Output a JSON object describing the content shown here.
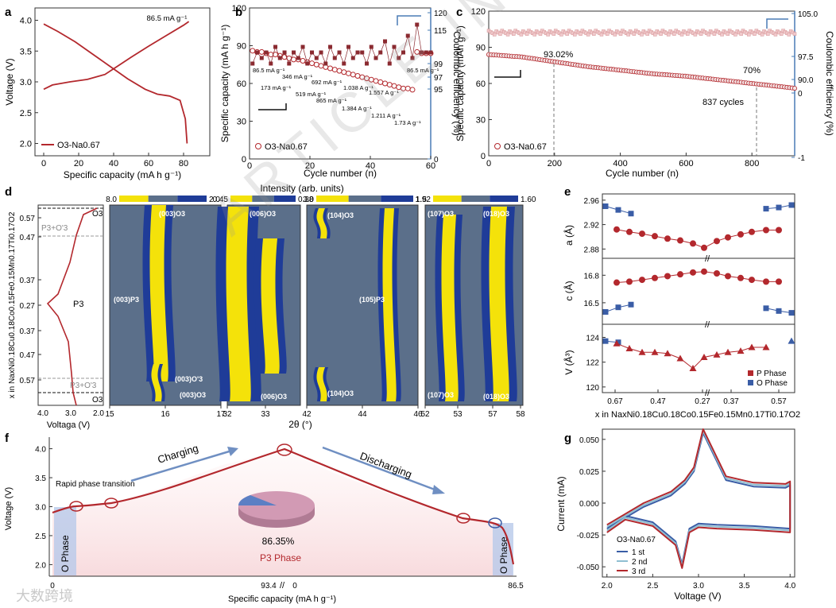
{
  "watermark": "ARTICLE IN PRESS",
  "corner_logo": "大数跨境",
  "panel_letters": {
    "a": "a",
    "b": "b",
    "c": "c",
    "d": "d",
    "e": "e",
    "f": "f",
    "g": "g"
  },
  "chart_data": [
    {
      "id": "a",
      "type": "line",
      "xlabel": "Specific capacity (mA h g⁻¹)",
      "ylabel": "Voltage (V)",
      "xlim": [
        -5,
        95
      ],
      "ylim": [
        1.8,
        4.2
      ],
      "xticks": [
        "0",
        "20",
        "40",
        "60",
        "80"
      ],
      "yticks": [
        "2.0",
        "2.5",
        "3.0",
        "3.5",
        "4.0"
      ],
      "legend": "O3-Na0.67",
      "annotation": "86.5 mA g⁻¹",
      "series": [
        {
          "name": "charge",
          "x": [
            0,
            5,
            15,
            25,
            35,
            42,
            50,
            60,
            70,
            80,
            83
          ],
          "y": [
            2.88,
            2.95,
            3.0,
            3.04,
            3.12,
            3.25,
            3.4,
            3.58,
            3.75,
            3.92,
            3.98
          ]
        },
        {
          "name": "discharge",
          "x": [
            0,
            8,
            18,
            28,
            38,
            48,
            58,
            65,
            72,
            78,
            81,
            82
          ],
          "y": [
            3.94,
            3.82,
            3.65,
            3.45,
            3.25,
            3.05,
            2.88,
            2.8,
            2.77,
            2.7,
            2.4,
            2.0
          ]
        }
      ]
    },
    {
      "id": "b",
      "type": "scatter",
      "xlabel": "Cycle number (n)",
      "ylabel": "Specific capacity (mA h g⁻¹)",
      "ylabel_right": "Coulombic efficiency (%)",
      "xlim": [
        0,
        60
      ],
      "ylim": [
        0,
        120
      ],
      "xticks": [
        "0",
        "20",
        "40",
        "60"
      ],
      "yticks": [
        "0",
        "30",
        "60",
        "90",
        "120"
      ],
      "yticks_right": [
        "0",
        "95",
        "97",
        "99",
        "115",
        "120"
      ],
      "legend": "O3-Na0.67",
      "rate_labels": [
        "86.5 mA g⁻¹",
        "173 mA g⁻¹",
        "346 mA g⁻¹",
        "519 mA g⁻¹",
        "692 mA g⁻¹",
        "865 mA g⁻¹",
        "1.038 A g⁻¹",
        "1.384 A g⁻¹",
        "1.211 A g⁻¹",
        "1.557 A g⁻¹",
        "1.73 A g⁻¹",
        "86.5 mA g⁻¹"
      ],
      "capacity": [
        86,
        85,
        85,
        84,
        83,
        83,
        82,
        81,
        80,
        79,
        79,
        78,
        77,
        76,
        75,
        74,
        73,
        72,
        71,
        70,
        69,
        68,
        67,
        66,
        65,
        64,
        63,
        62,
        61,
        60,
        59,
        58,
        57,
        56,
        56,
        55,
        85,
        84,
        84,
        84
      ],
      "efficiency_pct": [
        97,
        99,
        98,
        99,
        97,
        100,
        98,
        99,
        97,
        99,
        98,
        100,
        97,
        99,
        98,
        99,
        97,
        100,
        98,
        99,
        97,
        100,
        98,
        99,
        99,
        97,
        100,
        98,
        99,
        101,
        97,
        100,
        98,
        99,
        102,
        98,
        104,
        99,
        99,
        99
      ]
    },
    {
      "id": "c",
      "type": "scatter",
      "xlabel": "Cycle number (n)",
      "ylabel": "Specific capacity (mAh g⁻¹)",
      "ylabel_right": "Coulombic efficiency (%)",
      "xlim": [
        0,
        930
      ],
      "ylim": [
        0,
        120
      ],
      "xticks": [
        "0",
        "200",
        "400",
        "600",
        "800"
      ],
      "yticks": [
        "0",
        "30",
        "60",
        "90",
        "120"
      ],
      "yticks_right": [
        "-1",
        "0",
        "90.0",
        "97.5",
        "105.0"
      ],
      "legend": "O3-Na0.67",
      "annotations": [
        "93.02%",
        "70%",
        "837 cycles"
      ],
      "capacity_x": [
        0,
        100,
        200,
        300,
        400,
        500,
        600,
        700,
        800,
        900,
        930
      ],
      "capacity": [
        84,
        82,
        78,
        74,
        71,
        68,
        66,
        63,
        60,
        57,
        56
      ],
      "efficiency_pct": 99.5
    },
    {
      "id": "d",
      "type": "heatmap",
      "xlabel": "2θ (°)",
      "ylabel": "x in NaxNi0.18Cu0.18Co0.15Fe0.15Mn0.17Ti0.17O2",
      "title": "Intensity (arb. units)",
      "voltage_axis": {
        "xlabel": "Voltaga (V)",
        "xticks": [
          "4.0",
          "3.0",
          "2.0"
        ],
        "yticks": [
          "0.57",
          "0.47",
          "0.37",
          "0.27",
          "0.37",
          "0.47",
          "0.57"
        ],
        "phase_labels": [
          "O3",
          "P3+O'3",
          "P3",
          "P3+O'3",
          "O3"
        ]
      },
      "colorbars": [
        [
          "8.0",
          "2.0"
        ],
        [
          "0.45",
          "0.38"
        ],
        [
          "3.0",
          "1.5"
        ],
        [
          "1.92",
          "1.60"
        ]
      ],
      "subpanels": [
        {
          "xticks": [
            "15",
            "16",
            "17"
          ],
          "peaks": [
            "(003)O3",
            "(003)P3",
            "(003)O'3",
            "(003)O3"
          ]
        },
        {
          "xticks": [
            "32",
            "33"
          ],
          "peaks": [
            "(006)O3",
            "(006)O3"
          ]
        },
        {
          "xticks": [
            "42",
            "44",
            "46"
          ],
          "peaks": [
            "(104)O3",
            "(105)P3",
            "(104)O3"
          ]
        },
        {
          "xticks": [
            "52",
            "53",
            "57",
            "58"
          ],
          "peaks": [
            "(107)O3",
            "(018)O3",
            "(107)O3",
            "(018)O3"
          ]
        }
      ]
    },
    {
      "id": "e",
      "type": "scatter",
      "xlabel": "x in NaxNi0.18Cu0.18Co0.15Fe0.15Mn0.17Ti0.17O2",
      "xticks": [
        "0.67",
        "0.47",
        "0.27",
        "0.37",
        "0.57"
      ],
      "legend": [
        "P Phase",
        "O Phase"
      ],
      "panels": [
        {
          "ylabel": "a (Å)",
          "yticks": [
            "2.88",
            "2.92",
            "2.96"
          ],
          "ylim": [
            2.87,
            2.965
          ],
          "O_left": [
            2.95,
            2.944,
            2.938
          ],
          "P": [
            2.912,
            2.908,
            2.905,
            2.901,
            2.897,
            2.894,
            2.889,
            2.882,
            2.893,
            2.899,
            2.904,
            2.908,
            2.911,
            2.911
          ],
          "O_right": [
            2.946,
            2.948,
            2.952
          ]
        },
        {
          "ylabel": "c (Å)",
          "yticks": [
            "16.5",
            "16.8"
          ],
          "ylim": [
            16.3,
            16.95
          ],
          "O_left": [
            16.4,
            16.45,
            16.48
          ],
          "P": [
            16.72,
            16.73,
            16.75,
            16.77,
            16.79,
            16.81,
            16.83,
            16.84,
            16.82,
            16.79,
            16.77,
            16.75,
            16.73,
            16.73
          ],
          "O_right": [
            16.44,
            16.41,
            16.39
          ]
        },
        {
          "ylabel": "V (Å³)",
          "yticks": [
            "120",
            "122",
            "124"
          ],
          "ylim": [
            119.8,
            124.8
          ],
          "O_left": [
            123.7,
            123.6
          ],
          "P": [
            123.5,
            123.1,
            122.8,
            122.8,
            122.7,
            122.3,
            121.5,
            122.4,
            122.6,
            122.8,
            122.9,
            123.2,
            123.2
          ],
          "O_right": [
            123.7
          ]
        }
      ]
    },
    {
      "id": "f",
      "type": "line",
      "xlabel": "Specific capacity (mA h g⁻¹)",
      "ylabel": "Voltage (V)",
      "ylim": [
        1.8,
        4.2
      ],
      "xticks": [
        "0",
        "93.4",
        "0",
        "86.5"
      ],
      "yticks": [
        "2.0",
        "2.5",
        "3.0",
        "3.5",
        "4.0"
      ],
      "labels": [
        "Rapid phase transition",
        "Charging",
        "Discharging",
        "O Phase",
        "O Phase",
        "86.35%",
        "P3 Phase"
      ],
      "pie": {
        "P3_pct": 86.35,
        "O_pct": 13.65
      },
      "charge_x": [
        0,
        10,
        20,
        30,
        45,
        60,
        75,
        93.4
      ],
      "charge_y": [
        2.88,
        2.95,
        3.0,
        3.05,
        3.3,
        3.6,
        3.85,
        4.0
      ],
      "discharge_x": [
        0,
        15,
        30,
        45,
        60,
        72,
        80,
        84,
        86.5
      ],
      "discharge_y": [
        4.0,
        3.7,
        3.35,
        3.0,
        2.8,
        2.73,
        2.7,
        2.5,
        2.0
      ]
    },
    {
      "id": "g",
      "type": "line",
      "xlabel": "Voltage (V)",
      "ylabel": "Current (mA)",
      "xlim": [
        1.95,
        4.05
      ],
      "ylim": [
        -0.058,
        0.058
      ],
      "xticks": [
        "2.0",
        "2.5",
        "3.0",
        "3.5",
        "4.0"
      ],
      "yticks": [
        "-0.050",
        "-0.025",
        "0.000",
        "0.025",
        "0.050"
      ],
      "legend_title": "O3-Na0.67",
      "series": [
        {
          "name": "1 st",
          "color": "#3a5da6"
        },
        {
          "name": "2 nd",
          "color": "#8fbfd2"
        },
        {
          "name": "3 rd",
          "color": "#b3282d"
        }
      ],
      "anodic_x": [
        2.0,
        2.4,
        2.7,
        2.85,
        2.95,
        3.05,
        3.3,
        3.6,
        3.95,
        4.0
      ],
      "anodic_y": [
        -0.02,
        -0.003,
        0.006,
        0.015,
        0.025,
        0.055,
        0.018,
        0.013,
        0.012,
        0.014
      ],
      "cathodic_x": [
        4.0,
        3.6,
        3.2,
        3.0,
        2.9,
        2.82,
        2.75,
        2.5,
        2.2,
        2.0
      ],
      "cathodic_y": [
        -0.02,
        -0.018,
        -0.017,
        -0.016,
        -0.02,
        -0.048,
        -0.03,
        -0.015,
        -0.01,
        -0.02
      ]
    }
  ]
}
